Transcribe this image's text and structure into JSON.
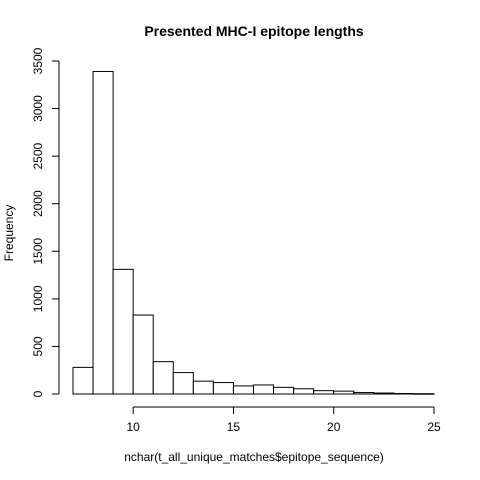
{
  "chart_data": {
    "type": "bar",
    "subtype": "histogram",
    "title": "Presented MHC-I epitope lengths",
    "xlabel": "nchar(t_all_unique_matches$epitope_sequence)",
    "ylabel": "Frequency",
    "bin_edges": [
      7,
      8,
      9,
      10,
      11,
      12,
      13,
      14,
      15,
      16,
      17,
      18,
      19,
      20,
      21,
      22,
      23,
      24,
      25
    ],
    "values": [
      280,
      3390,
      1310,
      830,
      340,
      225,
      135,
      120,
      85,
      95,
      70,
      55,
      35,
      30,
      15,
      10,
      5,
      3
    ],
    "xlim": [
      7,
      25
    ],
    "ylim": [
      0,
      3500
    ],
    "x_ticks": [
      10,
      15,
      20,
      25
    ],
    "y_ticks": [
      0,
      500,
      1000,
      1500,
      2000,
      2500,
      3000,
      3500
    ],
    "grid": false,
    "legend": "none",
    "colors": {
      "fill": "#ffffff",
      "stroke": "#000000"
    }
  }
}
